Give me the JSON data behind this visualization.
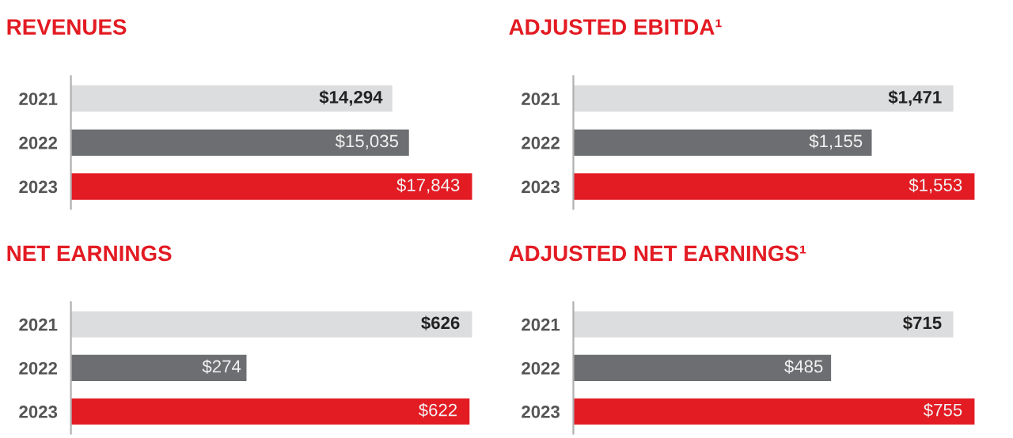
{
  "chart_data": [
    {
      "type": "bar",
      "orientation": "horizontal",
      "title": "REVENUES",
      "categories": [
        "2021",
        "2022",
        "2023"
      ],
      "values": [
        14294,
        15035,
        17843
      ],
      "colors": [
        "#dcdddf",
        "#6d6e71",
        "#e31b23"
      ],
      "value_labels": [
        "$14,294",
        "$15,035",
        "$17,843"
      ],
      "tick_labels": "y",
      "grid": false,
      "legend": false
    },
    {
      "type": "bar",
      "orientation": "horizontal",
      "title": "ADJUSTED EBITDA¹",
      "categories": [
        "2021",
        "2022",
        "2023"
      ],
      "values": [
        1471,
        1155,
        1553
      ],
      "colors": [
        "#dcdddf",
        "#6d6e71",
        "#e31b23"
      ],
      "value_labels": [
        "$1,471",
        "$1,155",
        "$1,553"
      ],
      "tick_labels": "y",
      "grid": false,
      "legend": false
    },
    {
      "type": "bar",
      "orientation": "horizontal",
      "title": "NET EARNINGS",
      "categories": [
        "2021",
        "2022",
        "2023"
      ],
      "values": [
        626,
        274,
        622
      ],
      "colors": [
        "#dcdddf",
        "#6d6e71",
        "#e31b23"
      ],
      "value_labels": [
        "$626",
        "$274",
        "$622"
      ],
      "tick_labels": "y",
      "grid": false,
      "legend": false
    },
    {
      "type": "bar",
      "orientation": "horizontal",
      "title": "ADJUSTED NET EARNINGS¹",
      "categories": [
        "2021",
        "2022",
        "2023"
      ],
      "values": [
        715,
        485,
        755
      ],
      "colors": [
        "#dcdddf",
        "#6d6e71",
        "#e31b23"
      ],
      "value_labels": [
        "$715",
        "$485",
        "$755"
      ],
      "tick_labels": "y",
      "grid": false,
      "legend": false
    }
  ]
}
